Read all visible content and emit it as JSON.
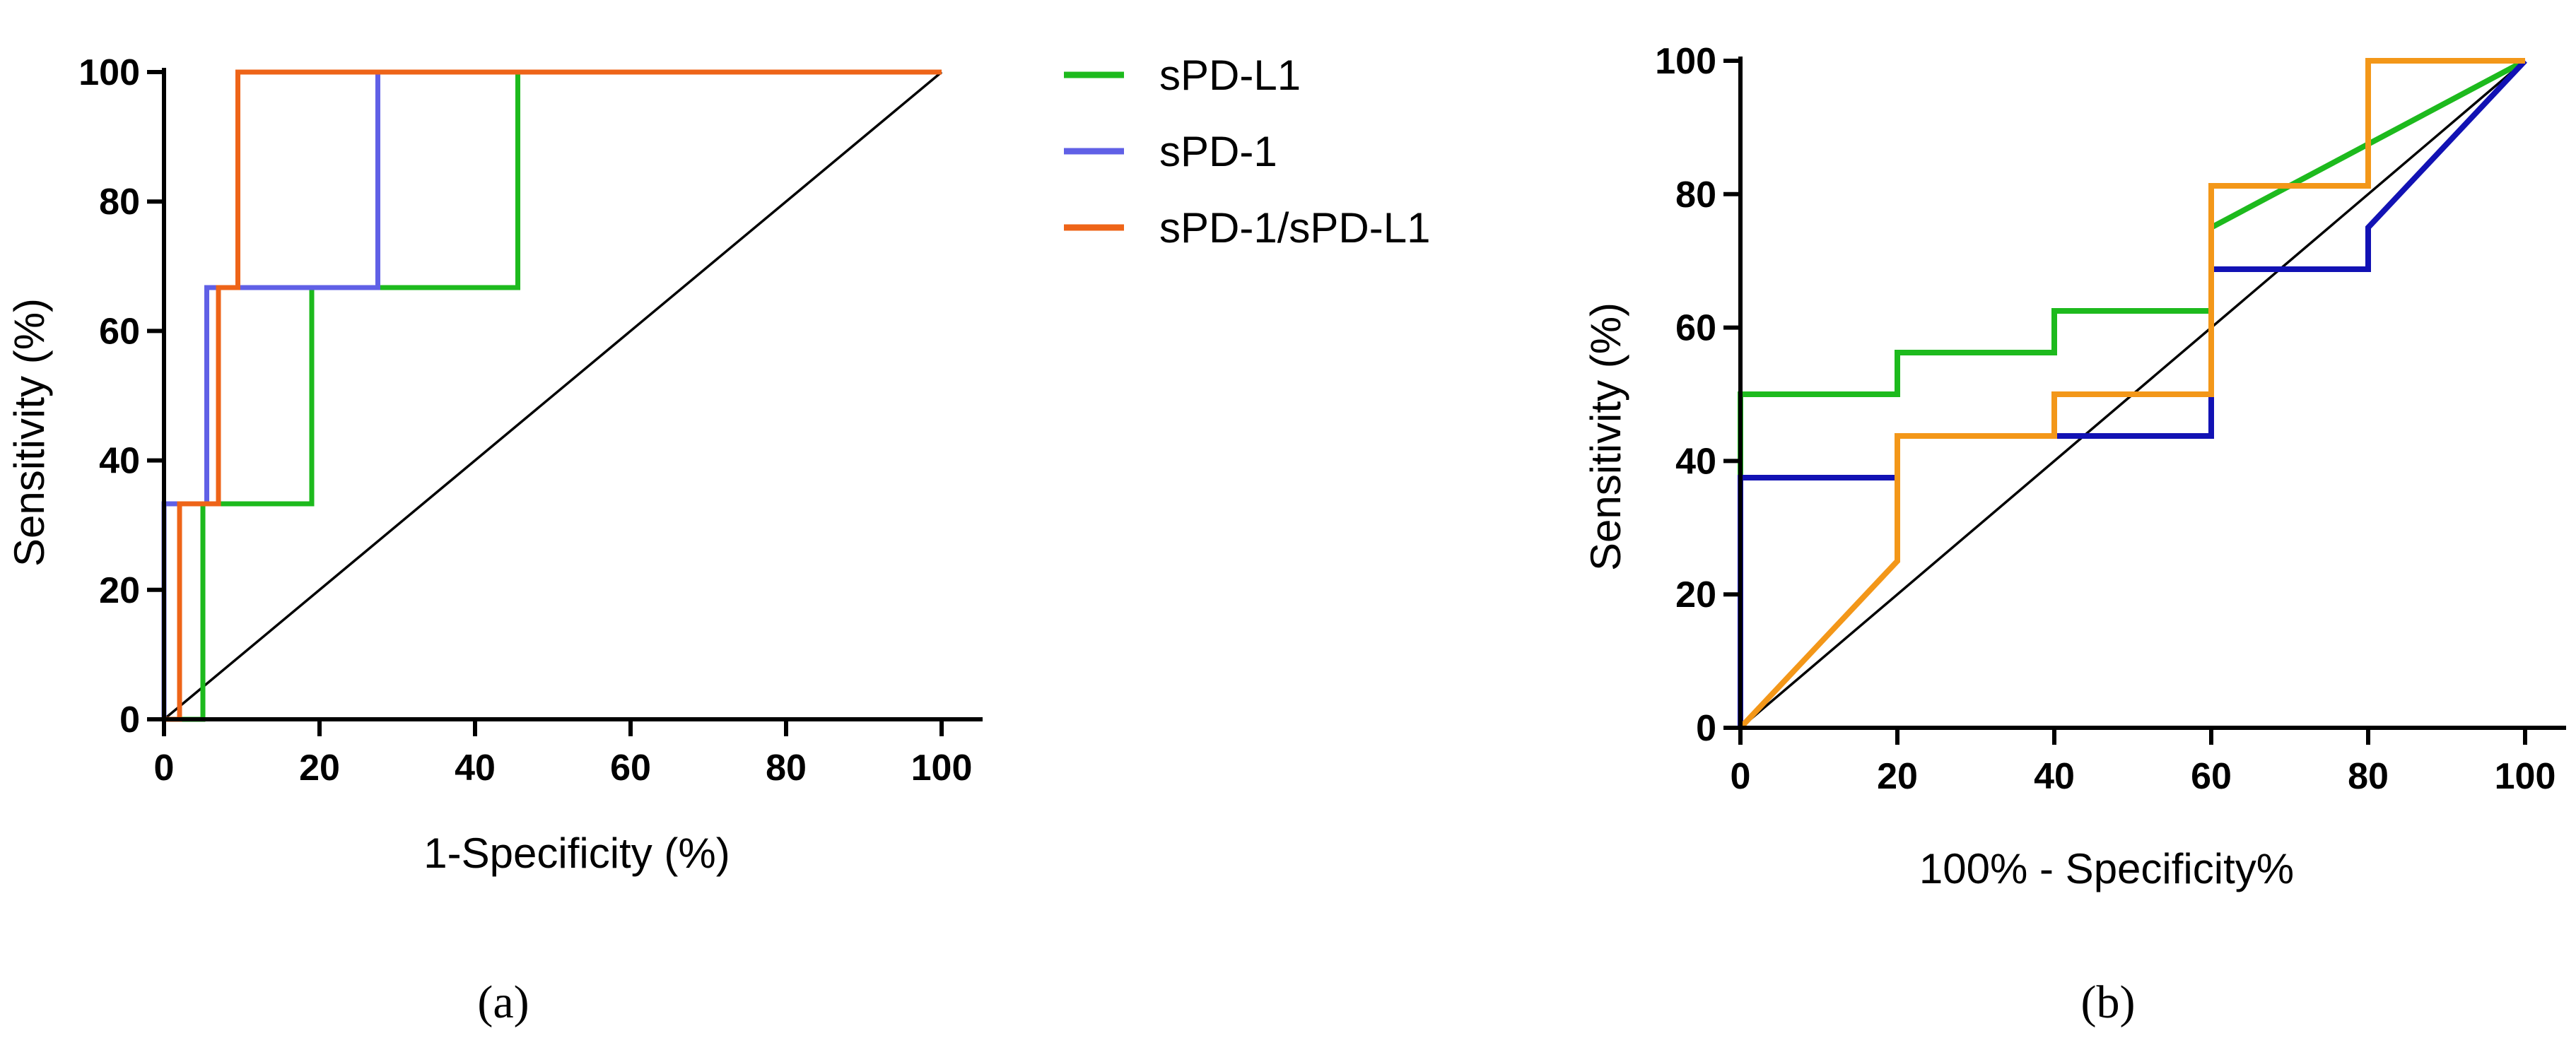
{
  "chart_data": [
    {
      "type": "line",
      "panel_label": "(a)",
      "xlabel": "1-Specificity (%)",
      "ylabel": "Sensitivity (%)",
      "xlim": [
        0,
        100
      ],
      "ylim": [
        0,
        100
      ],
      "xticks": [
        "0",
        "20",
        "40",
        "60",
        "80",
        "100"
      ],
      "yticks": [
        "0",
        "20",
        "40",
        "60",
        "80",
        "100"
      ],
      "reference_line": {
        "x": [
          0,
          100
        ],
        "y": [
          0,
          100
        ],
        "color": "#000000"
      },
      "legend": {
        "placement": "right of chart (a)"
      },
      "series": [
        {
          "name": "sPD-L1",
          "color": "#1dba1d",
          "x": [
            0,
            5,
            5,
            19,
            19,
            45.5,
            45.5,
            100
          ],
          "y": [
            0,
            0,
            33.3,
            33.3,
            66.7,
            66.7,
            100,
            100
          ]
        },
        {
          "name": "sPD-1",
          "color": "#6060e6",
          "x": [
            0,
            0,
            5.5,
            5.5,
            27.5,
            27.5,
            100
          ],
          "y": [
            0,
            33.3,
            33.3,
            66.7,
            66.7,
            100,
            100
          ]
        },
        {
          "name": "sPD-1/sPD-L1",
          "color": "#ee6418",
          "x": [
            0,
            2,
            2,
            7,
            7,
            9.5,
            9.5,
            100
          ],
          "y": [
            0,
            0,
            33.3,
            33.3,
            66.7,
            66.7,
            100,
            100
          ]
        }
      ]
    },
    {
      "type": "line",
      "panel_label": "(b)",
      "xlabel": "100% - Specificity%",
      "ylabel": "Sensitivity (%)",
      "xlim": [
        0,
        100
      ],
      "ylim": [
        0,
        100
      ],
      "xticks": [
        "0",
        "20",
        "40",
        "60",
        "80",
        "100"
      ],
      "yticks": [
        "0",
        "20",
        "40",
        "60",
        "80",
        "100"
      ],
      "reference_line": {
        "x": [
          0,
          100
        ],
        "y": [
          0,
          100
        ],
        "color": "#000000"
      },
      "series": [
        {
          "name": "sPD-L1",
          "color": "#1dba1d",
          "x": [
            0,
            0,
            20,
            20,
            40,
            40,
            60,
            60,
            100
          ],
          "y": [
            0,
            50,
            50,
            56.25,
            56.25,
            62.5,
            62.5,
            75,
            100
          ]
        },
        {
          "name": "sPD-1",
          "color": "#1212b4",
          "x": [
            0,
            0,
            20,
            20,
            60,
            60,
            80,
            80,
            100
          ],
          "y": [
            0,
            37.5,
            37.5,
            43.75,
            43.75,
            68.75,
            68.75,
            75,
            100
          ]
        },
        {
          "name": "sPD-1/sPD-L1",
          "color": "#f39719",
          "x": [
            0,
            20,
            20,
            40,
            40,
            60,
            60,
            80,
            80,
            100
          ],
          "y": [
            0,
            25,
            43.75,
            43.75,
            50,
            50,
            81.25,
            81.25,
            100,
            100
          ]
        }
      ]
    }
  ]
}
